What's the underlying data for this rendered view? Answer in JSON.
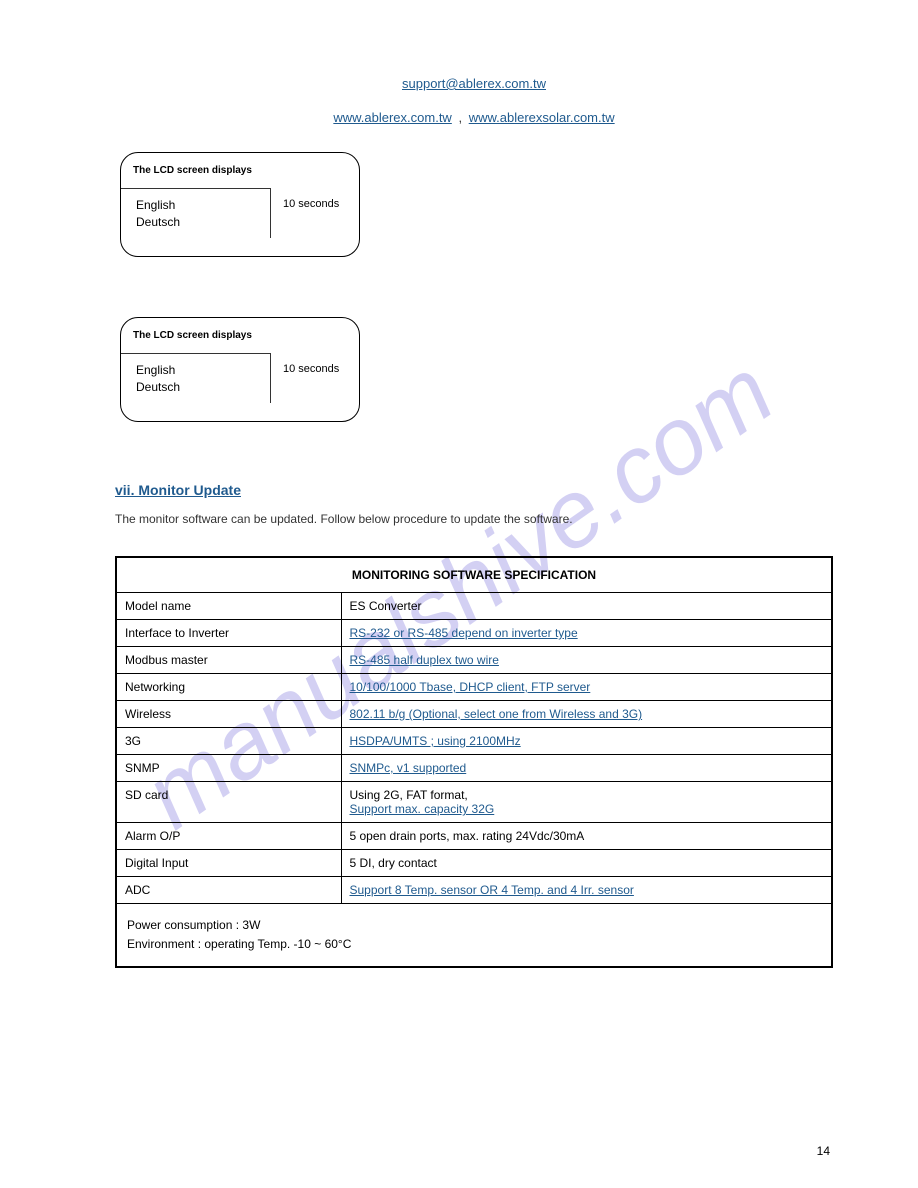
{
  "watermark": "manualshive.com",
  "header": {
    "email_link": "support@ablerex.com.tw",
    "left_link": "www.ablerex.com.tw",
    "right_link": "www.ablerexsolar.com.tw"
  },
  "box1": {
    "label": "The LCD screen displays",
    "english": "English",
    "secondary": "Deutsch",
    "right": "10 seconds"
  },
  "box2": {
    "label": "The LCD screen displays",
    "english": "English",
    "secondary": "Deutsch",
    "right": "10 seconds"
  },
  "update": {
    "link_text": "vii. Monitor Update",
    "description": "The monitor software can be updated. Follow below procedure to update the software."
  },
  "spec_table": {
    "title": "MONITORING SOFTWARE SPECIFICATION",
    "rows": [
      {
        "label": "Model name",
        "value": "ES Converter"
      },
      {
        "label": "Interface to Inverter",
        "value": "RS-232 or RS-485 depend on inverter type"
      },
      {
        "label": "Modbus master",
        "value": "RS-485 half duplex two wire"
      },
      {
        "label": "Networking",
        "value": "10/100/1000 Tbase, DHCP client, FTP server"
      },
      {
        "label": "Wireless",
        "value": "802.11 b/g (Optional, select one from Wireless and 3G)"
      },
      {
        "label": "3G",
        "value": "HSDPA/UMTS ; using 2100MHz"
      },
      {
        "label": "SNMP",
        "value": "SNMPc, v1 supported"
      },
      {
        "label": "SD card",
        "value_line1": "Using 2G, FAT format,",
        "value_link": "Support max. capacity 32G"
      },
      {
        "label": "Alarm O/P",
        "value": "5 open drain ports, max. rating 24Vdc/30mA"
      },
      {
        "label": "Digital Input",
        "value": "5 DI, dry contact"
      },
      {
        "label": "ADC",
        "value_link": "Support 8 Temp. sensor OR 4 Temp. and 4 Irr. sensor"
      }
    ],
    "footer": {
      "line1": "Power consumption : 3W",
      "line2_prefix": "Environment :  operating Temp.  -10",
      "line2_suffix": " ~ 60°C"
    }
  },
  "page_number": "14"
}
